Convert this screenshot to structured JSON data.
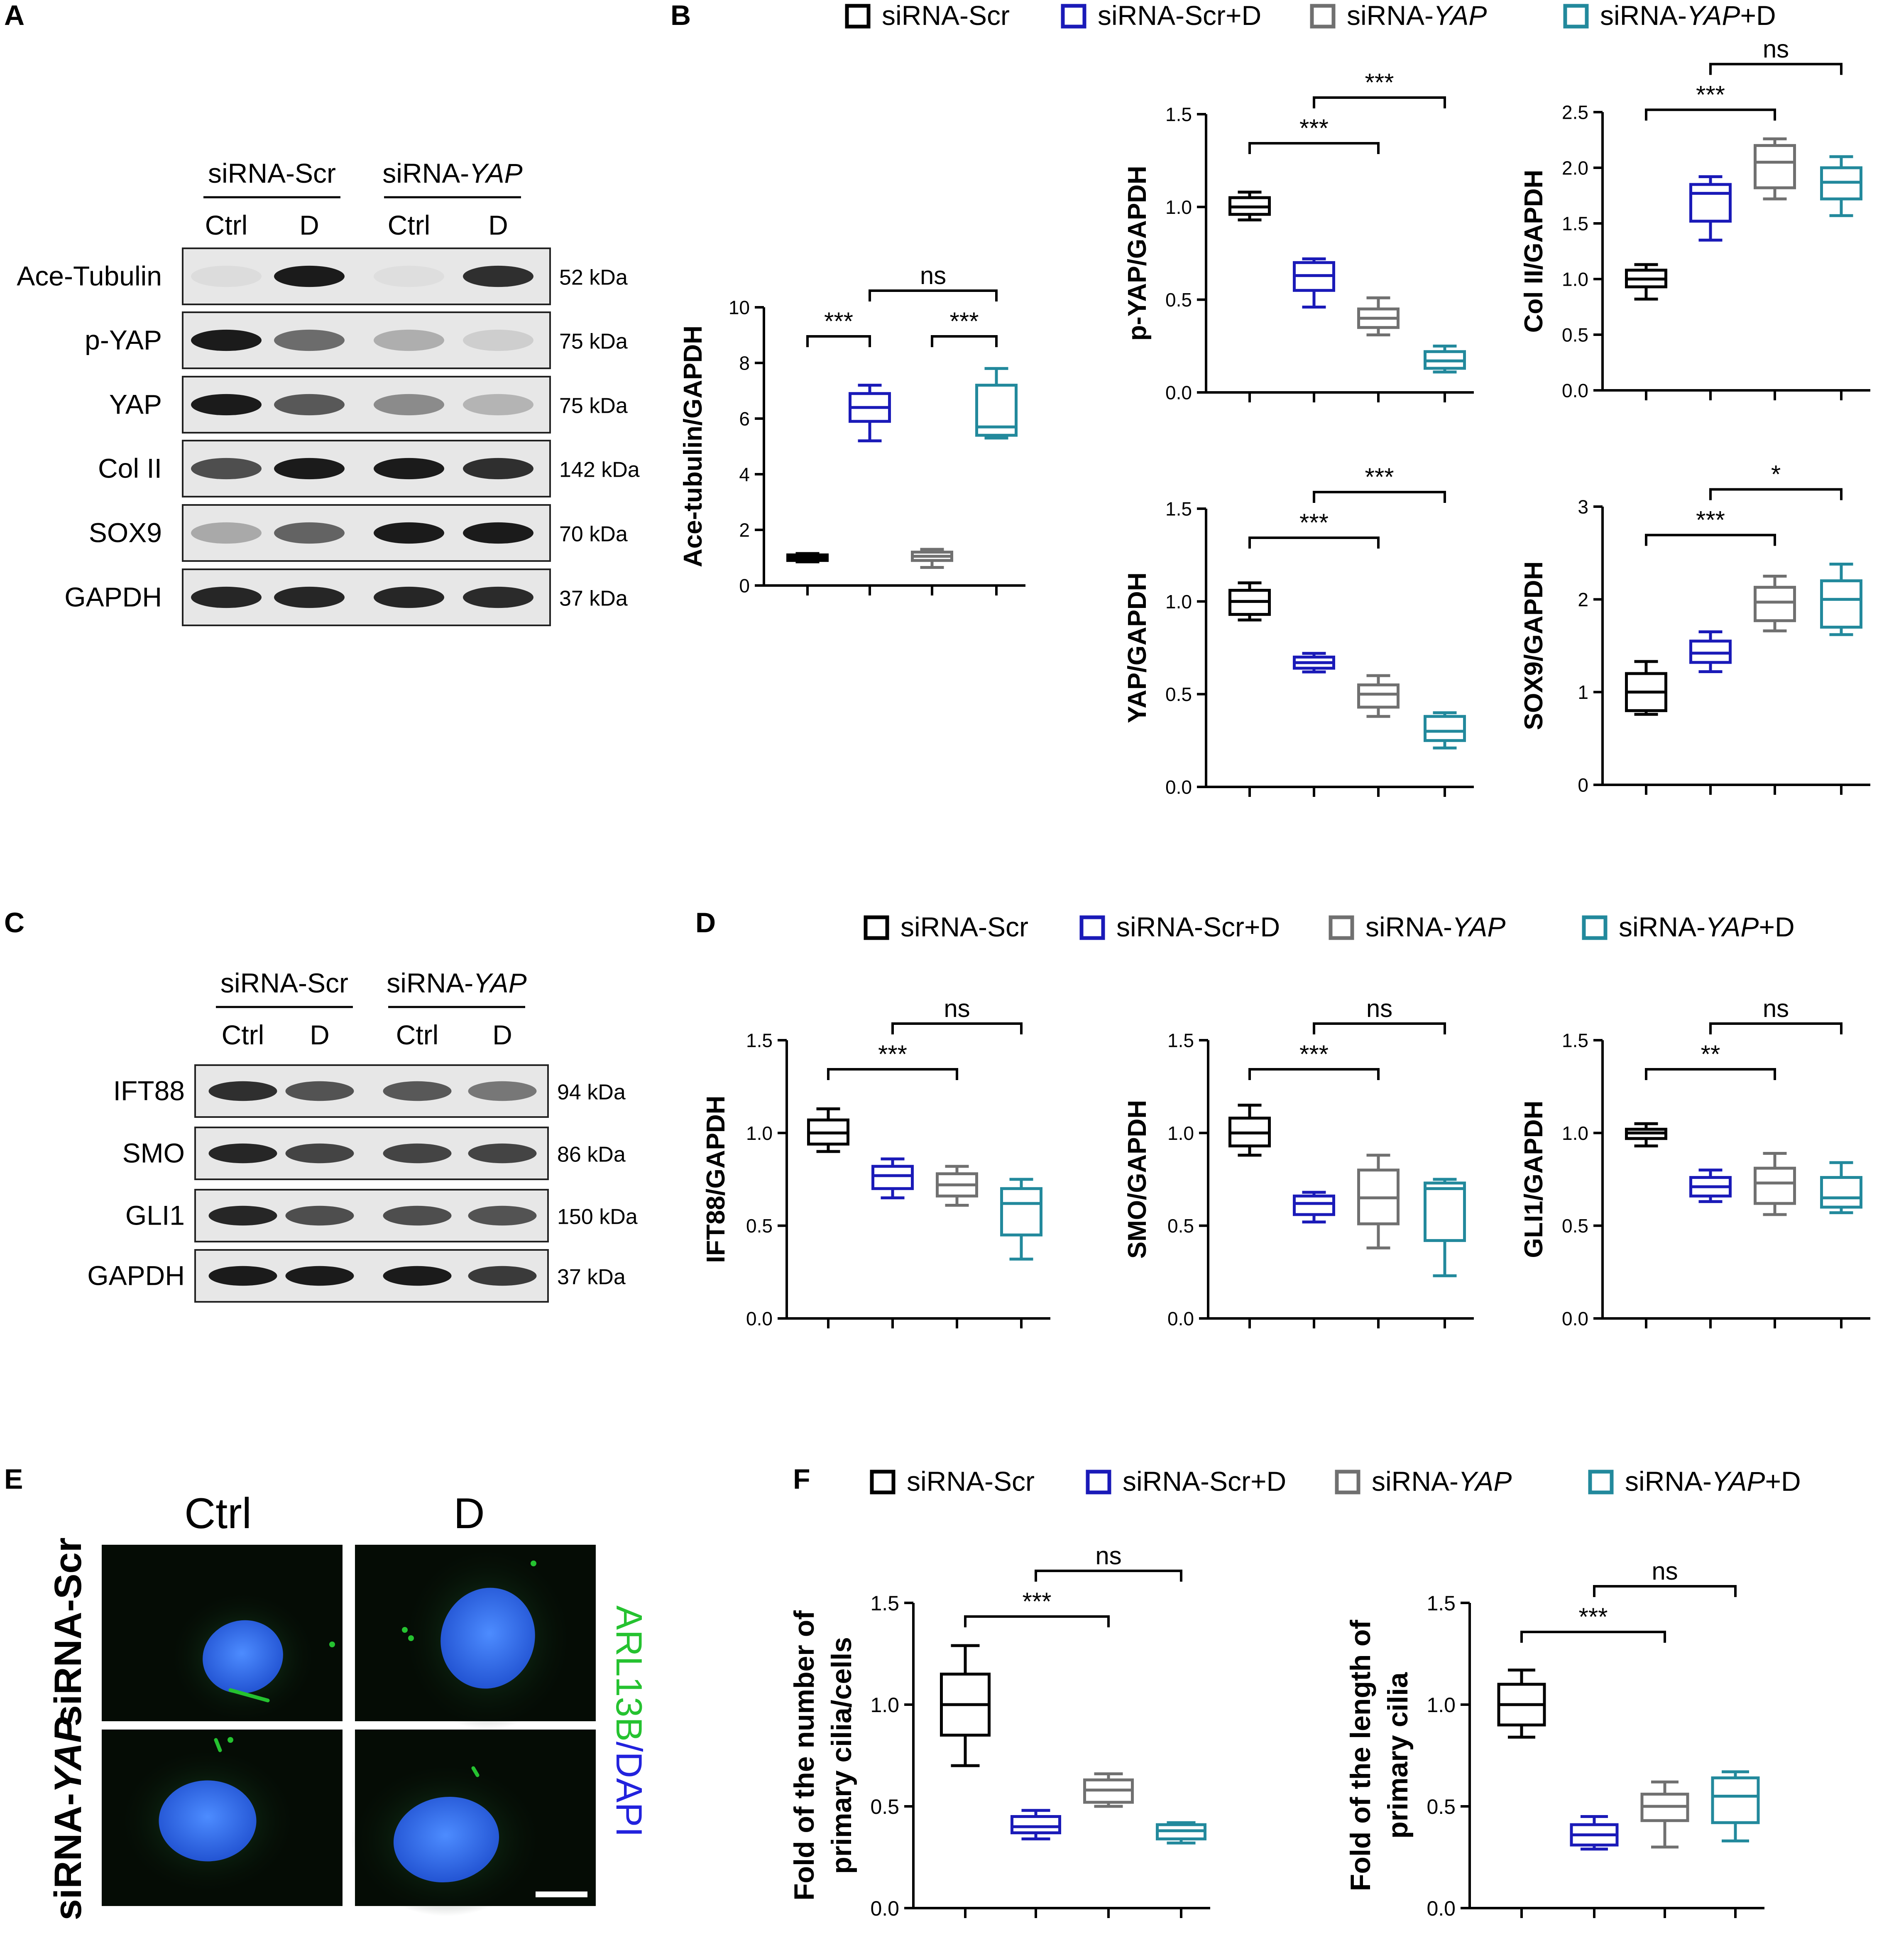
{
  "panels": {
    "A": "A",
    "B": "B",
    "C": "C",
    "D": "D",
    "E": "E",
    "F": "F"
  },
  "colors": {
    "scr": "#000000",
    "scrD": "#1a1ab8",
    "yap": "#707070",
    "yapD": "#22899c",
    "band": "#1b1b1b",
    "blot_bg": "#e7e7e7",
    "nucleus": "#2d6cf0",
    "cilia": "#25c230"
  },
  "legend": {
    "items": [
      {
        "text": "siRNA-Scr",
        "italic": "",
        "suffix": "",
        "color": "#000000"
      },
      {
        "text": "siRNA-Scr+D",
        "italic": "",
        "suffix": "",
        "color": "#1a1ab8"
      },
      {
        "text": "siRNA-",
        "italic": "YAP",
        "suffix": "",
        "color": "#707070"
      },
      {
        "text": "siRNA-",
        "italic": "YAP",
        "suffix": "+D",
        "color": "#22899c"
      }
    ]
  },
  "blotA": {
    "groups": [
      {
        "text": "siRNA-Scr",
        "italic": ""
      },
      {
        "text": "siRNA-",
        "italic": "YAP"
      }
    ],
    "lanes": [
      "Ctrl",
      "D",
      "Ctrl",
      "D"
    ],
    "rows": [
      {
        "name": "Ace-Tubulin",
        "kda": "52 kDa",
        "intensity": [
          0.05,
          1.0,
          0.04,
          0.9
        ]
      },
      {
        "name": "p-YAP",
        "kda": "75 kDa",
        "intensity": [
          1.0,
          0.6,
          0.28,
          0.12
        ]
      },
      {
        "name": "YAP",
        "kda": "75 kDa",
        "intensity": [
          1.0,
          0.7,
          0.45,
          0.25
        ]
      },
      {
        "name": "Col II",
        "kda": "142 kDa",
        "intensity": [
          0.75,
          1.0,
          1.0,
          0.9
        ]
      },
      {
        "name": "SOX9",
        "kda": "70 kDa",
        "intensity": [
          0.3,
          0.65,
          1.0,
          1.0
        ]
      },
      {
        "name": "GAPDH",
        "kda": "37 kDa",
        "intensity": [
          0.95,
          0.95,
          0.95,
          0.92
        ]
      }
    ]
  },
  "blotC": {
    "groups": [
      {
        "text": "siRNA-Scr",
        "italic": ""
      },
      {
        "text": "siRNA-",
        "italic": "YAP"
      }
    ],
    "lanes": [
      "Ctrl",
      "D",
      "Ctrl",
      "D"
    ],
    "rows": [
      {
        "name": "IFT88",
        "kda": "94 kDa",
        "intensity": [
          0.9,
          0.72,
          0.7,
          0.55
        ]
      },
      {
        "name": "SMO",
        "kda": "86 kDa",
        "intensity": [
          0.95,
          0.8,
          0.8,
          0.8
        ]
      },
      {
        "name": "GLI1",
        "kda": "150 kDa",
        "intensity": [
          0.95,
          0.75,
          0.75,
          0.72
        ]
      },
      {
        "name": "GAPDH",
        "kda": "37 kDa",
        "intensity": [
          1.0,
          1.0,
          1.0,
          0.85
        ]
      }
    ]
  },
  "imagesE": {
    "columns": [
      "Ctrl",
      "D"
    ],
    "rows": [
      {
        "text": "siRNA-Scr",
        "italic": ""
      },
      {
        "text": "siRNA-",
        "italic": "YAP"
      }
    ],
    "side_label": {
      "a": "ARL13B",
      "b": "/DAPI"
    }
  },
  "chart_data": [
    {
      "id": "ace",
      "type": "box",
      "ylabel": "Ace-tubulin/GAPDH",
      "ylim": [
        0,
        10
      ],
      "yticks": [
        "0",
        "2",
        "4",
        "6",
        "8",
        "10"
      ],
      "boxes": [
        {
          "group": "siRNA-Scr",
          "min": 0.85,
          "q1": 0.9,
          "median": 1.0,
          "q3": 1.1,
          "max": 1.15
        },
        {
          "group": "siRNA-Scr+D",
          "min": 5.2,
          "q1": 5.9,
          "median": 6.4,
          "q3": 6.9,
          "max": 7.2
        },
        {
          "group": "siRNA-YAP",
          "min": 0.65,
          "q1": 0.9,
          "median": 1.05,
          "q3": 1.2,
          "max": 1.3
        },
        {
          "group": "siRNA-YAP+D",
          "min": 5.3,
          "q1": 5.4,
          "median": 5.7,
          "q3": 7.2,
          "max": 7.8
        }
      ],
      "sig": [
        {
          "a": 0,
          "b": 1,
          "level": 0,
          "text": "***"
        },
        {
          "a": 2,
          "b": 3,
          "level": 0,
          "text": "***"
        },
        {
          "a": 1,
          "b": 3,
          "level": 1,
          "text": "ns"
        }
      ]
    },
    {
      "id": "pyap",
      "type": "box",
      "ylabel": "p-YAP/GAPDH",
      "ylim": [
        0,
        1.5
      ],
      "yticks": [
        "0.0",
        "0.5",
        "1.0",
        "1.5"
      ],
      "boxes": [
        {
          "group": "siRNA-Scr",
          "min": 0.93,
          "q1": 0.96,
          "median": 1.0,
          "q3": 1.05,
          "max": 1.08
        },
        {
          "group": "siRNA-Scr+D",
          "min": 0.46,
          "q1": 0.55,
          "median": 0.63,
          "q3": 0.7,
          "max": 0.72
        },
        {
          "group": "siRNA-YAP",
          "min": 0.31,
          "q1": 0.35,
          "median": 0.4,
          "q3": 0.45,
          "max": 0.51
        },
        {
          "group": "siRNA-YAP+D",
          "min": 0.11,
          "q1": 0.13,
          "median": 0.17,
          "q3": 0.22,
          "max": 0.25
        }
      ],
      "sig": [
        {
          "a": 0,
          "b": 2,
          "level": 0,
          "text": "***"
        },
        {
          "a": 1,
          "b": 3,
          "level": 1,
          "text": "***"
        }
      ]
    },
    {
      "id": "col2",
      "type": "box",
      "ylabel": "Col II/GAPDH",
      "ylim": [
        0,
        2.5
      ],
      "yticks": [
        "0.0",
        "0.5",
        "1.0",
        "1.5",
        "2.0",
        "2.5"
      ],
      "boxes": [
        {
          "group": "siRNA-Scr",
          "min": 0.82,
          "q1": 0.93,
          "median": 1.0,
          "q3": 1.08,
          "max": 1.13
        },
        {
          "group": "siRNA-Scr+D",
          "min": 1.35,
          "q1": 1.52,
          "median": 1.77,
          "q3": 1.85,
          "max": 1.92
        },
        {
          "group": "siRNA-YAP",
          "min": 1.72,
          "q1": 1.82,
          "median": 2.05,
          "q3": 2.2,
          "max": 2.26
        },
        {
          "group": "siRNA-YAP+D",
          "min": 1.57,
          "q1": 1.72,
          "median": 1.87,
          "q3": 2.0,
          "max": 2.1
        }
      ],
      "sig": [
        {
          "a": 0,
          "b": 2,
          "level": 0,
          "text": "***"
        },
        {
          "a": 1,
          "b": 3,
          "level": 1,
          "text": "ns"
        }
      ]
    },
    {
      "id": "yap",
      "type": "box",
      "ylabel": "YAP/GAPDH",
      "ylim": [
        0,
        1.5
      ],
      "yticks": [
        "0.0",
        "0.5",
        "1.0",
        "1.5"
      ],
      "boxes": [
        {
          "group": "siRNA-Scr",
          "min": 0.9,
          "q1": 0.93,
          "median": 1.0,
          "q3": 1.06,
          "max": 1.1
        },
        {
          "group": "siRNA-Scr+D",
          "min": 0.62,
          "q1": 0.64,
          "median": 0.67,
          "q3": 0.7,
          "max": 0.72
        },
        {
          "group": "siRNA-YAP",
          "min": 0.38,
          "q1": 0.43,
          "median": 0.5,
          "q3": 0.55,
          "max": 0.6
        },
        {
          "group": "siRNA-YAP+D",
          "min": 0.21,
          "q1": 0.25,
          "median": 0.3,
          "q3": 0.38,
          "max": 0.4
        }
      ],
      "sig": [
        {
          "a": 0,
          "b": 2,
          "level": 0,
          "text": "***"
        },
        {
          "a": 1,
          "b": 3,
          "level": 1,
          "text": "***"
        }
      ]
    },
    {
      "id": "sox9",
      "type": "box",
      "ylabel": "SOX9/GAPDH",
      "ylim": [
        0,
        3
      ],
      "yticks": [
        "0",
        "1",
        "2",
        "3"
      ],
      "boxes": [
        {
          "group": "siRNA-Scr",
          "min": 0.76,
          "q1": 0.8,
          "median": 1.0,
          "q3": 1.2,
          "max": 1.33
        },
        {
          "group": "siRNA-Scr+D",
          "min": 1.22,
          "q1": 1.32,
          "median": 1.42,
          "q3": 1.55,
          "max": 1.65
        },
        {
          "group": "siRNA-YAP",
          "min": 1.66,
          "q1": 1.77,
          "median": 1.97,
          "q3": 2.13,
          "max": 2.25
        },
        {
          "group": "siRNA-YAP+D",
          "min": 1.62,
          "q1": 1.7,
          "median": 2.0,
          "q3": 2.2,
          "max": 2.38
        }
      ],
      "sig": [
        {
          "a": 0,
          "b": 2,
          "level": 0,
          "text": "***"
        },
        {
          "a": 1,
          "b": 3,
          "level": 1,
          "text": "*"
        }
      ]
    },
    {
      "id": "ift88",
      "type": "box",
      "ylabel": "IFT88/GAPDH",
      "ylim": [
        0,
        1.5
      ],
      "yticks": [
        "0.0",
        "0.5",
        "1.0",
        "1.5"
      ],
      "boxes": [
        {
          "group": "siRNA-Scr",
          "min": 0.9,
          "q1": 0.94,
          "median": 1.0,
          "q3": 1.07,
          "max": 1.13
        },
        {
          "group": "siRNA-Scr+D",
          "min": 0.65,
          "q1": 0.7,
          "median": 0.77,
          "q3": 0.82,
          "max": 0.86
        },
        {
          "group": "siRNA-YAP",
          "min": 0.61,
          "q1": 0.66,
          "median": 0.72,
          "q3": 0.78,
          "max": 0.82
        },
        {
          "group": "siRNA-YAP+D",
          "min": 0.32,
          "q1": 0.45,
          "median": 0.62,
          "q3": 0.7,
          "max": 0.75
        }
      ],
      "sig": [
        {
          "a": 0,
          "b": 2,
          "level": 0,
          "text": "***"
        },
        {
          "a": 1,
          "b": 3,
          "level": 1,
          "text": "ns"
        }
      ]
    },
    {
      "id": "smo",
      "type": "box",
      "ylabel": "SMO/GAPDH",
      "ylim": [
        0,
        1.5
      ],
      "yticks": [
        "0.0",
        "0.5",
        "1.0",
        "1.5"
      ],
      "boxes": [
        {
          "group": "siRNA-Scr",
          "min": 0.88,
          "q1": 0.93,
          "median": 1.0,
          "q3": 1.08,
          "max": 1.15
        },
        {
          "group": "siRNA-Scr+D",
          "min": 0.52,
          "q1": 0.56,
          "median": 0.62,
          "q3": 0.66,
          "max": 0.68
        },
        {
          "group": "siRNA-YAP",
          "min": 0.38,
          "q1": 0.51,
          "median": 0.65,
          "q3": 0.8,
          "max": 0.88
        },
        {
          "group": "siRNA-YAP+D",
          "min": 0.23,
          "q1": 0.42,
          "median": 0.7,
          "q3": 0.73,
          "max": 0.75
        }
      ],
      "sig": [
        {
          "a": 0,
          "b": 2,
          "level": 0,
          "text": "***"
        },
        {
          "a": 1,
          "b": 3,
          "level": 1,
          "text": "ns"
        }
      ]
    },
    {
      "id": "gli1",
      "type": "box",
      "ylabel": "GLI1/GAPDH",
      "ylim": [
        0,
        1.5
      ],
      "yticks": [
        "0.0",
        "0.5",
        "1.0",
        "1.5"
      ],
      "boxes": [
        {
          "group": "siRNA-Scr",
          "min": 0.93,
          "q1": 0.97,
          "median": 1.0,
          "q3": 1.02,
          "max": 1.05
        },
        {
          "group": "siRNA-Scr+D",
          "min": 0.63,
          "q1": 0.66,
          "median": 0.71,
          "q3": 0.76,
          "max": 0.8
        },
        {
          "group": "siRNA-YAP",
          "min": 0.56,
          "q1": 0.62,
          "median": 0.73,
          "q3": 0.81,
          "max": 0.89
        },
        {
          "group": "siRNA-YAP+D",
          "min": 0.57,
          "q1": 0.6,
          "median": 0.65,
          "q3": 0.76,
          "max": 0.84
        }
      ],
      "sig": [
        {
          "a": 0,
          "b": 2,
          "level": 0,
          "text": "**"
        },
        {
          "a": 1,
          "b": 3,
          "level": 1,
          "text": "ns"
        }
      ]
    },
    {
      "id": "number",
      "type": "box",
      "ylabel": "Fold of the number of",
      "ylabel2": "primary cilia/cells",
      "ylim": [
        0,
        1.5
      ],
      "yticks": [
        "0.0",
        "0.5",
        "1.0",
        "1.5"
      ],
      "boxes": [
        {
          "group": "siRNA-Scr",
          "min": 0.7,
          "q1": 0.85,
          "median": 1.0,
          "q3": 1.15,
          "max": 1.29
        },
        {
          "group": "siRNA-Scr+D",
          "min": 0.34,
          "q1": 0.37,
          "median": 0.4,
          "q3": 0.45,
          "max": 0.48
        },
        {
          "group": "siRNA-YAP",
          "min": 0.5,
          "q1": 0.52,
          "median": 0.58,
          "q3": 0.63,
          "max": 0.66
        },
        {
          "group": "siRNA-YAP+D",
          "min": 0.32,
          "q1": 0.34,
          "median": 0.38,
          "q3": 0.41,
          "max": 0.42
        }
      ],
      "sig": [
        {
          "a": 0,
          "b": 2,
          "level": 0,
          "text": "***"
        },
        {
          "a": 1,
          "b": 3,
          "level": 1,
          "text": "ns"
        }
      ]
    },
    {
      "id": "length",
      "type": "box",
      "ylabel": "Fold of the length of",
      "ylabel2": "primary cilia",
      "ylim": [
        0,
        1.5
      ],
      "yticks": [
        "0.0",
        "0.5",
        "1.0",
        "1.5"
      ],
      "boxes": [
        {
          "group": "siRNA-Scr",
          "min": 0.84,
          "q1": 0.9,
          "median": 1.0,
          "q3": 1.1,
          "max": 1.17
        },
        {
          "group": "siRNA-Scr+D",
          "min": 0.29,
          "q1": 0.31,
          "median": 0.36,
          "q3": 0.41,
          "max": 0.45
        },
        {
          "group": "siRNA-YAP",
          "min": 0.3,
          "q1": 0.43,
          "median": 0.5,
          "q3": 0.56,
          "max": 0.62
        },
        {
          "group": "siRNA-YAP+D",
          "min": 0.33,
          "q1": 0.42,
          "median": 0.55,
          "q3": 0.64,
          "max": 0.67
        }
      ],
      "sig": [
        {
          "a": 0,
          "b": 2,
          "level": 0,
          "text": "***"
        },
        {
          "a": 1,
          "b": 3,
          "level": 1,
          "text": "ns"
        }
      ]
    }
  ]
}
